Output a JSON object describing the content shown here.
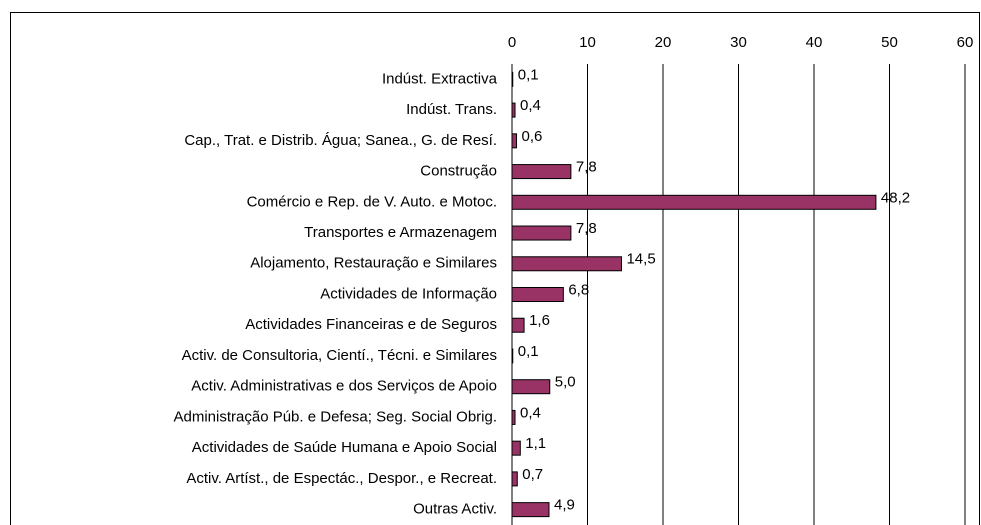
{
  "chart_data": {
    "type": "bar",
    "orientation": "horizontal",
    "categories": [
      "Indúst. Extractiva",
      "Indúst. Trans.",
      "Cap., Trat. e Distrib. Água; Sanea., G. de Resí.",
      "Construção",
      "Comércio e Rep. de V. Auto. e Motoc.",
      "Transportes e Armazenagem",
      "Alojamento, Restauração e Similares",
      "Actividades de Informação",
      "Actividades Financeiras e de Seguros",
      "Activ. de Consultoria, Cientí., Técni. e Similares",
      "Activ. Administrativas e dos Serviços de Apoio",
      "Administração Púb. e Defesa; Seg. Social Obrig.",
      "Actividades de Saúde Humana e Apoio Social",
      "Activ. Artíst., de Espectác., Despor., e Recreat.",
      "Outras Activ."
    ],
    "values": [
      0.1,
      0.4,
      0.6,
      7.8,
      48.2,
      7.8,
      14.5,
      6.8,
      1.6,
      0.1,
      5.0,
      0.4,
      1.1,
      0.7,
      4.9
    ],
    "value_labels": [
      "0,1",
      "0,4",
      "0,6",
      "7,8",
      "48,2",
      "7,8",
      "14,5",
      "6,8",
      "1,6",
      "0,1",
      "5,0",
      "0,4",
      "1,1",
      "0,7",
      "4,9"
    ],
    "color": "#993366",
    "xlim": [
      0,
      60
    ],
    "xticks": [
      0,
      10,
      20,
      30,
      40,
      50,
      60
    ],
    "grid": true
  }
}
